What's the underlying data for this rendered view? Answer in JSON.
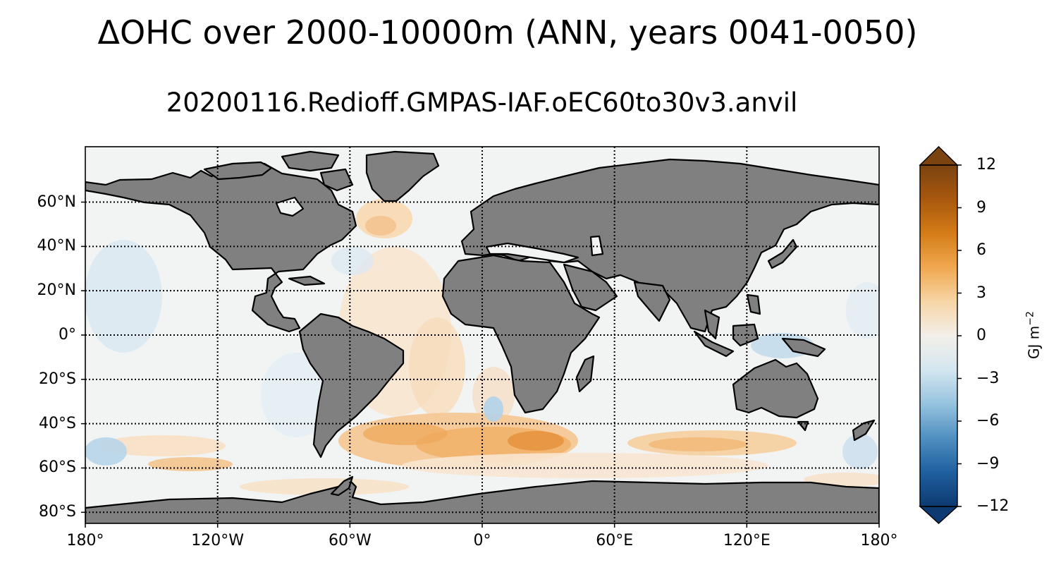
{
  "title": "ΔOHC over 2000-10000m (ANN, years 0041-0050)",
  "subtitle": "20200116.Redioff.GMPAS-IAF.oEC60to30v3.anvil",
  "map": {
    "projection": "plate carree",
    "lon_range": [
      -180,
      180
    ],
    "lat_range": [
      -85,
      85
    ],
    "gridlines": "dotted",
    "land_color": "#808080",
    "lat_ticks": [
      {
        "value": 60,
        "label": "60°N"
      },
      {
        "value": 40,
        "label": "40°N"
      },
      {
        "value": 20,
        "label": "20°N"
      },
      {
        "value": 0,
        "label": "0°"
      },
      {
        "value": -20,
        "label": "20°S"
      },
      {
        "value": -40,
        "label": "40°S"
      },
      {
        "value": -60,
        "label": "60°S"
      },
      {
        "value": -80,
        "label": "80°S"
      }
    ],
    "lon_ticks": [
      {
        "value": -180,
        "label": "180°"
      },
      {
        "value": -120,
        "label": "120°W"
      },
      {
        "value": -60,
        "label": "60°W"
      },
      {
        "value": 0,
        "label": "0°"
      },
      {
        "value": 60,
        "label": "60°E"
      },
      {
        "value": 120,
        "label": "120°E"
      },
      {
        "value": 180,
        "label": "180°"
      }
    ]
  },
  "colorbar": {
    "units_main": "GJ m",
    "units_sup": "−2",
    "range": [
      -12,
      12
    ],
    "extend": "both",
    "ticks": [
      {
        "value": 12,
        "label": "12"
      },
      {
        "value": 9,
        "label": "9"
      },
      {
        "value": 6,
        "label": "6"
      },
      {
        "value": 3,
        "label": "3"
      },
      {
        "value": 0,
        "label": "0"
      },
      {
        "value": -3,
        "label": "−3"
      },
      {
        "value": -6,
        "label": "−6"
      },
      {
        "value": -9,
        "label": "−9"
      },
      {
        "value": -12,
        "label": "−12"
      }
    ],
    "colors_top_to_bottom": [
      "#7a4310",
      "#a9580e",
      "#d37c17",
      "#f0a850",
      "#f7d5a6",
      "#f3efe9",
      "#d4e6f0",
      "#96c3de",
      "#4f8fc1",
      "#1f5f9f",
      "#0d3a70"
    ]
  }
}
